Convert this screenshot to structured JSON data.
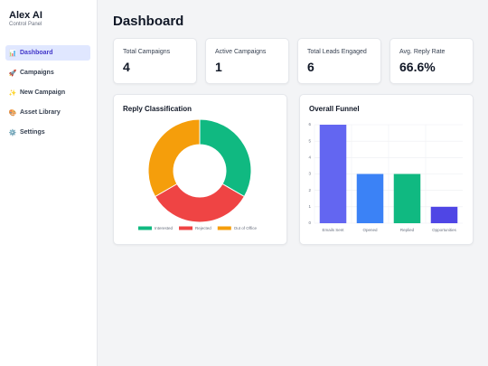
{
  "sidebar": {
    "brand": "Alex AI",
    "subtitle": "Control Panel",
    "nav": [
      {
        "icon": "📊",
        "label": "Dashboard"
      },
      {
        "icon": "🚀",
        "label": "Campaigns"
      },
      {
        "icon": "✨",
        "label": "New Campaign"
      },
      {
        "icon": "🎨",
        "label": "Asset Library"
      },
      {
        "icon": "⚙️",
        "label": "Settings"
      }
    ]
  },
  "header": {
    "title": "Dashboard"
  },
  "stats": [
    {
      "label": "Total Campaigns",
      "value": "4"
    },
    {
      "label": "Active Campaigns",
      "value": "1"
    },
    {
      "label": "Total Leads Engaged",
      "value": "6"
    },
    {
      "label": "Avg. Reply Rate",
      "value": "66.6%"
    }
  ],
  "chart_data": [
    {
      "type": "doughnut",
      "title": "Reply Classification",
      "categories": [
        "Interested",
        "Rejected",
        "Out of Office"
      ],
      "values": [
        1,
        1,
        1
      ],
      "colors": [
        "#10b981",
        "#ef4444",
        "#f59e0b"
      ]
    },
    {
      "type": "bar",
      "title": "Overall Funnel",
      "categories": [
        "Emails Sent",
        "Opened",
        "Replied",
        "Opportunities"
      ],
      "values": [
        6,
        3,
        3,
        1
      ],
      "colors": [
        "#6366f1",
        "#3b82f6",
        "#10b981",
        "#4f46e5"
      ],
      "ylim": [
        0,
        6
      ],
      "yticks": [
        0,
        1,
        2,
        3,
        4,
        5,
        6
      ],
      "grid": true
    }
  ]
}
